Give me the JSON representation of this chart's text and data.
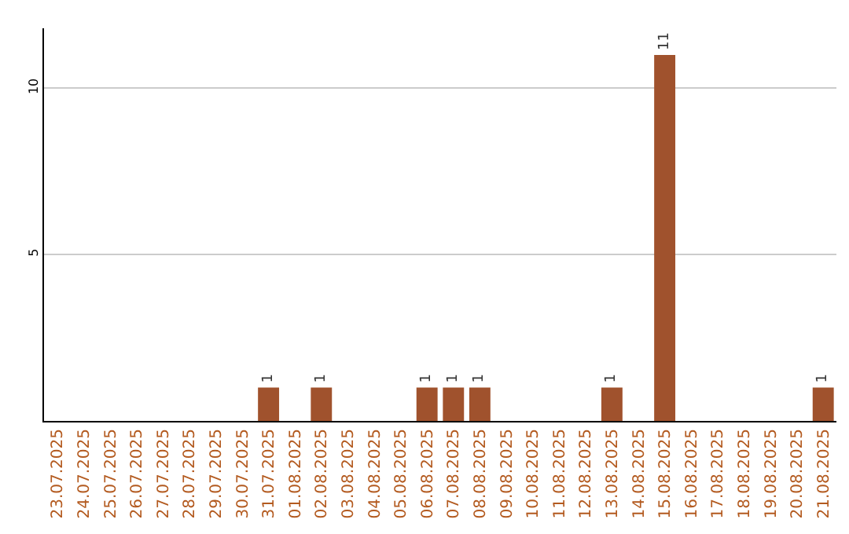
{
  "chart_data": {
    "type": "bar",
    "categories": [
      "23.07.2025",
      "24.07.2025",
      "25.07.2025",
      "26.07.2025",
      "27.07.2025",
      "28.07.2025",
      "29.07.2025",
      "30.07.2025",
      "31.07.2025",
      "01.08.2025",
      "02.08.2025",
      "03.08.2025",
      "04.08.2025",
      "05.08.2025",
      "06.08.2025",
      "07.08.2025",
      "08.08.2025",
      "09.08.2025",
      "10.08.2025",
      "11.08.2025",
      "12.08.2025",
      "13.08.2025",
      "14.08.2025",
      "15.08.2025",
      "16.08.2025",
      "17.08.2025",
      "18.08.2025",
      "19.08.2025",
      "20.08.2025",
      "21.08.2025"
    ],
    "values": [
      0,
      0,
      0,
      0,
      0,
      0,
      0,
      0,
      1,
      0,
      1,
      0,
      0,
      0,
      1,
      1,
      1,
      0,
      0,
      0,
      0,
      1,
      0,
      11,
      0,
      0,
      0,
      0,
      0,
      1
    ],
    "value_labels": [
      null,
      null,
      null,
      null,
      null,
      null,
      null,
      null,
      "1",
      null,
      "1",
      null,
      null,
      null,
      "1",
      "1",
      "1",
      null,
      null,
      null,
      null,
      "1",
      null,
      "11",
      null,
      null,
      null,
      null,
      null,
      "1"
    ],
    "color": "#a0522d",
    "ylim": [
      0,
      11.8
    ],
    "yticks": [
      5,
      10
    ],
    "grid": "y"
  }
}
